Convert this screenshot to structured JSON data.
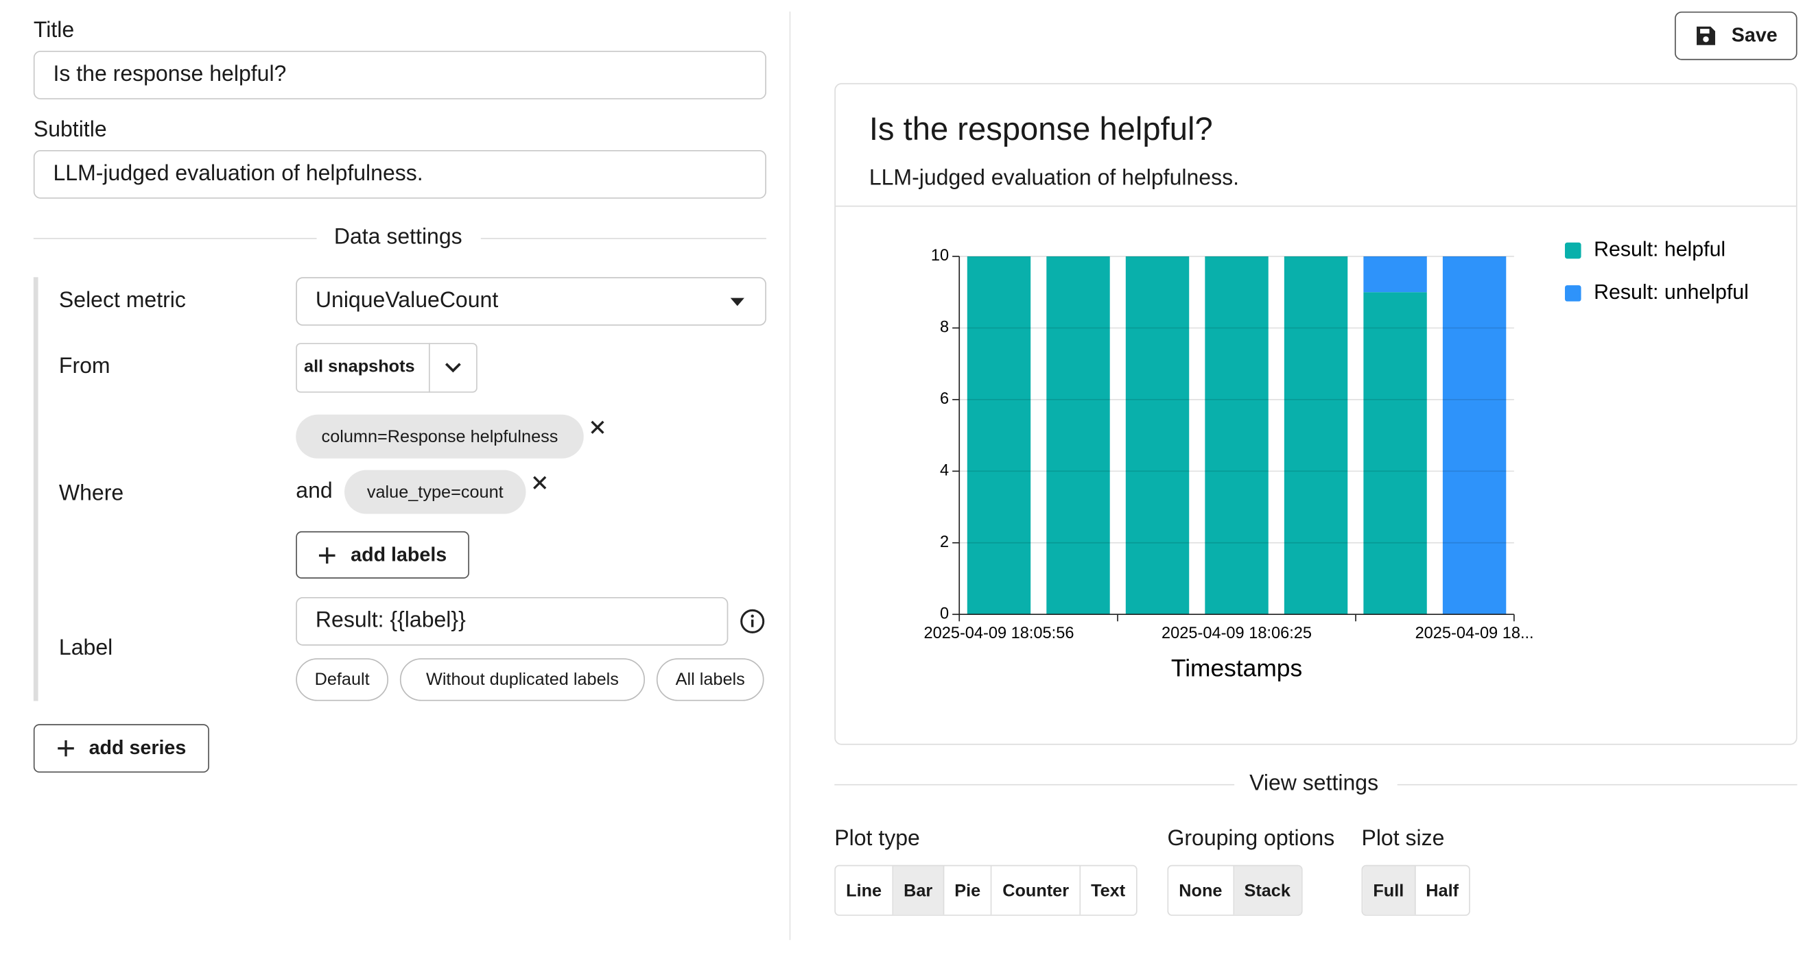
{
  "form": {
    "title_label": "Title",
    "title_value": "Is the response helpful?",
    "subtitle_label": "Subtitle",
    "subtitle_value": "LLM-judged evaluation of helpfulness.",
    "data_settings": "Data settings",
    "metric_label": "Select metric",
    "metric_value": "UniqueValueCount",
    "from_label": "From",
    "from_value": "all snapshots",
    "where_label": "Where",
    "where_chips": [
      "column=Response helpfulness",
      "value_type=count"
    ],
    "where_and": "and",
    "add_labels": "add labels",
    "label_label": "Label",
    "label_value": "Result: {{label}}",
    "label_presets": [
      "Default",
      "Without duplicated labels",
      "All labels"
    ],
    "add_series": "add series"
  },
  "save": "Save",
  "chart_data": {
    "type": "bar",
    "stacked": true,
    "title": "Is the response helpful?",
    "subtitle": "LLM-judged evaluation of helpfulness.",
    "x_label": "Timestamps",
    "categories": [
      "2025-04-09 18:05:56",
      null,
      null,
      "2025-04-09 18:06:25",
      null,
      null,
      "2025-04-09 18..."
    ],
    "series": [
      {
        "name": "Result: helpful",
        "color": "#09b0ab",
        "values": [
          10,
          10,
          10,
          10,
          10,
          9,
          0
        ]
      },
      {
        "name": "Result: unhelpful",
        "color": "#2e93fa",
        "values": [
          0,
          0,
          0,
          0,
          0,
          1,
          10
        ]
      }
    ],
    "ylim": [
      0,
      10
    ],
    "yticks": [
      0,
      2,
      4,
      6,
      8,
      10
    ],
    "grid": true,
    "legend": "right"
  },
  "view_settings": {
    "title": "View settings",
    "groups": [
      {
        "label": "Plot type",
        "options": [
          "Line",
          "Bar",
          "Pie",
          "Counter",
          "Text"
        ],
        "selected": 1
      },
      {
        "label": "Grouping options",
        "options": [
          "None",
          "Stack"
        ],
        "selected": 1
      },
      {
        "label": "Plot size",
        "options": [
          "Full",
          "Half"
        ],
        "selected": 0
      }
    ]
  }
}
